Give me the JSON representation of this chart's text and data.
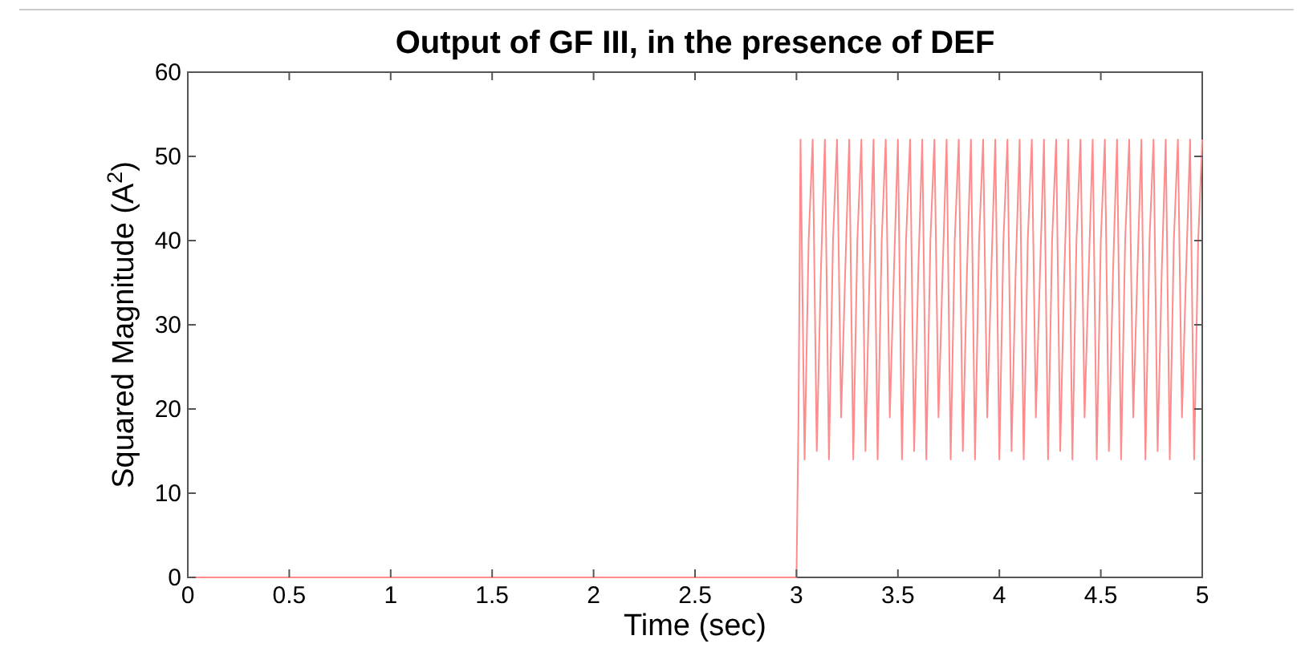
{
  "chart_data": {
    "type": "line",
    "title": "Output of GF III, in the presence of DEF",
    "xlabel": "Time (sec)",
    "ylabel": "Squared Magnitude (A$^{2}$)",
    "xlim": [
      0,
      5
    ],
    "ylim": [
      0,
      60
    ],
    "xticks": [
      0,
      0.5,
      1,
      1.5,
      2,
      2.5,
      3,
      3.5,
      4,
      4.5,
      5
    ],
    "yticks": [
      0,
      10,
      20,
      30,
      40,
      50,
      60
    ],
    "grid": false,
    "series": [
      {
        "color": "#ff8c8c",
        "x": [
          0,
          3,
          3.01,
          3.02,
          3.04,
          3.06,
          3.08,
          3.1,
          3.12,
          3.14,
          3.16,
          3.18,
          3.2,
          3.22,
          3.24,
          3.26,
          3.28,
          3.3,
          3.32,
          3.34,
          3.36,
          3.38,
          3.4,
          3.42,
          3.44,
          3.46,
          3.48,
          3.5,
          3.52,
          3.54,
          3.56,
          3.58,
          3.6,
          3.62,
          3.64,
          3.66,
          3.68,
          3.7,
          3.72,
          3.74,
          3.76,
          3.78,
          3.8,
          3.82,
          3.84,
          3.86,
          3.88,
          3.9,
          3.92,
          3.94,
          3.96,
          3.98,
          4,
          4.02,
          4.04,
          4.06,
          4.08,
          4.1,
          4.12,
          4.14,
          4.16,
          4.18,
          4.2,
          4.22,
          4.24,
          4.26,
          4.28,
          4.3,
          4.32,
          4.34,
          4.36,
          4.38,
          4.4,
          4.42,
          4.44,
          4.46,
          4.48,
          4.5,
          4.52,
          4.54,
          4.56,
          4.58,
          4.6,
          4.62,
          4.64,
          4.66,
          4.68,
          4.7,
          4.72,
          4.74,
          4.76,
          4.78,
          4.8,
          4.82,
          4.84,
          4.86,
          4.88,
          4.9,
          4.92,
          4.94,
          4.96,
          4.98,
          5
        ],
        "values": [
          0,
          0,
          19,
          52,
          14,
          40,
          52,
          15,
          36,
          52,
          14,
          40,
          52,
          19,
          36,
          52,
          14,
          40,
          52,
          15,
          36,
          52,
          14,
          40,
          52,
          19,
          36,
          52,
          14,
          40,
          52,
          15,
          36,
          52,
          14,
          40,
          52,
          19,
          36,
          52,
          14,
          40,
          52,
          15,
          36,
          52,
          14,
          40,
          52,
          19,
          36,
          52,
          14,
          40,
          52,
          15,
          36,
          52,
          14,
          40,
          52,
          19,
          36,
          52,
          14,
          40,
          52,
          15,
          36,
          52,
          14,
          40,
          52,
          19,
          36,
          52,
          14,
          40,
          52,
          15,
          36,
          52,
          14,
          40,
          52,
          19,
          36,
          52,
          14,
          40,
          52,
          15,
          36,
          52,
          14,
          40,
          52,
          19,
          36,
          52,
          14,
          40,
          52
        ]
      }
    ]
  }
}
